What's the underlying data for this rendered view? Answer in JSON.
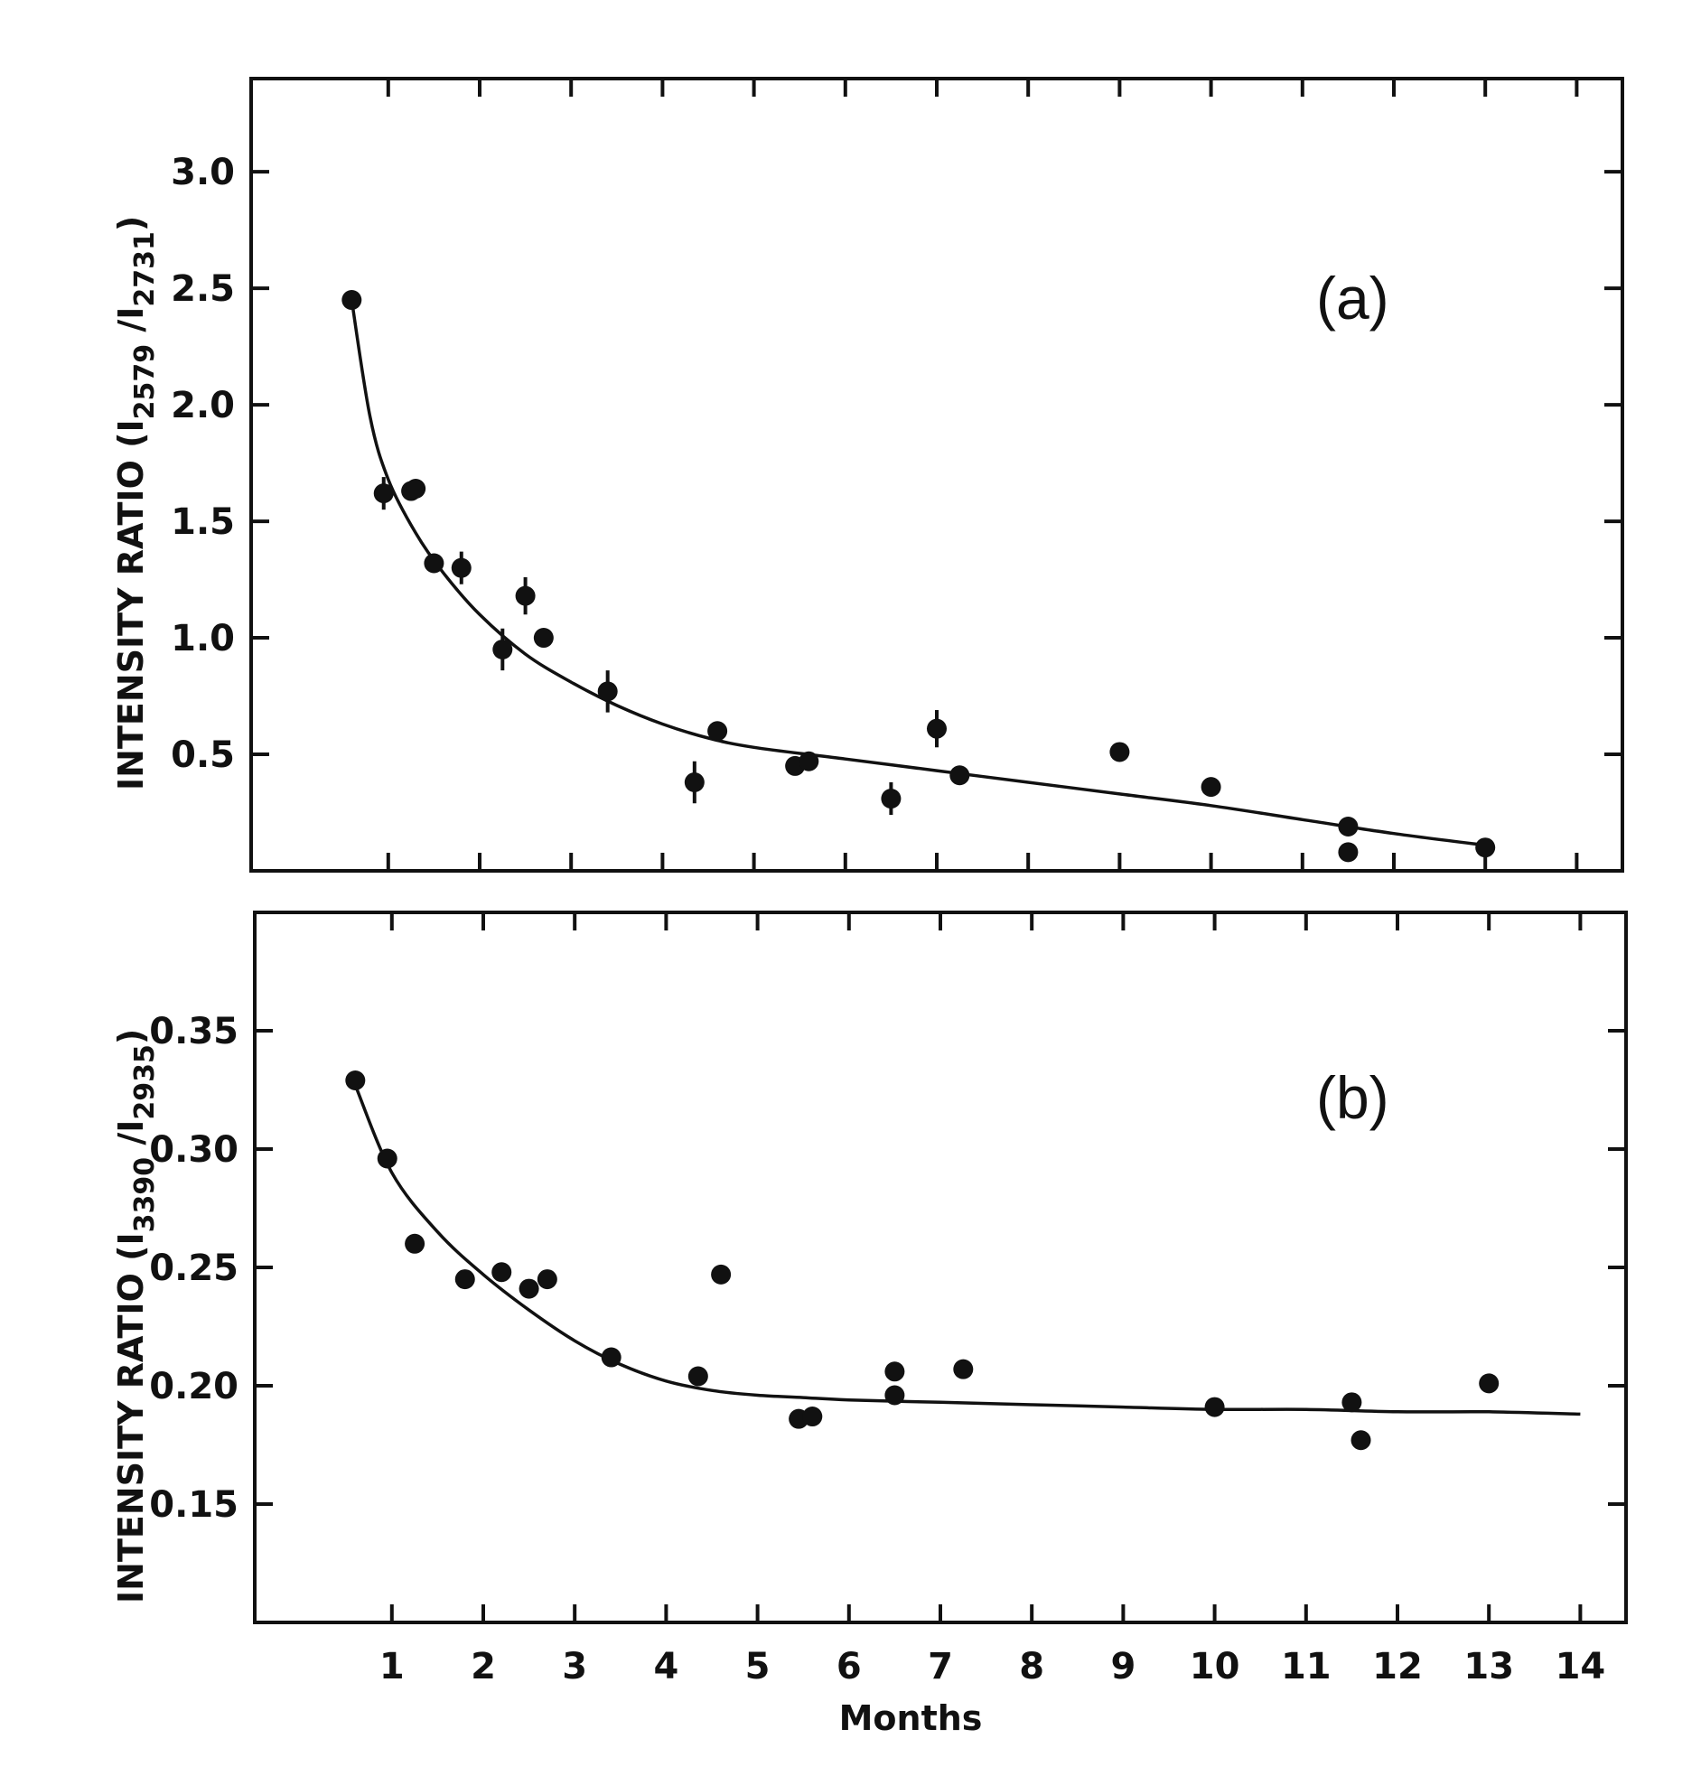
{
  "chart_data": [
    {
      "type": "scatter",
      "panel_label": "(a)",
      "ylabel_main": "INTENSITY RATIO (I",
      "ylabel_sub1": "2579",
      "ylabel_mid": " /I",
      "ylabel_sub2": "2731",
      "ylabel_end": ")",
      "xlim": [
        -0.5,
        14.5
      ],
      "ylim": [
        0,
        3.4
      ],
      "yticks": [
        0.5,
        1.0,
        1.5,
        2.0,
        2.5,
        3.0
      ],
      "ytick_labels": [
        "0.5",
        "1.0",
        "1.5",
        "2.0",
        "2.5",
        "3.0"
      ],
      "xticks": [
        1,
        2,
        3,
        4,
        5,
        6,
        7,
        8,
        9,
        10,
        11,
        12,
        13,
        14
      ],
      "points": [
        {
          "x": 0.6,
          "y": 2.45,
          "err": 0.03
        },
        {
          "x": 0.95,
          "y": 1.62,
          "err": 0.07
        },
        {
          "x": 1.25,
          "y": 1.63,
          "err": 0.03
        },
        {
          "x": 1.3,
          "y": 1.64,
          "err": 0.03
        },
        {
          "x": 1.5,
          "y": 1.32,
          "err": 0.03
        },
        {
          "x": 1.8,
          "y": 1.3,
          "err": 0.07
        },
        {
          "x": 2.25,
          "y": 0.95,
          "err": 0.09
        },
        {
          "x": 2.5,
          "y": 1.18,
          "err": 0.08
        },
        {
          "x": 2.7,
          "y": 1.0,
          "err": 0.03
        },
        {
          "x": 3.4,
          "y": 0.77,
          "err": 0.09
        },
        {
          "x": 4.35,
          "y": 0.38,
          "err": 0.09
        },
        {
          "x": 4.6,
          "y": 0.6,
          "err": 0.03
        },
        {
          "x": 5.45,
          "y": 0.45,
          "err": 0.03
        },
        {
          "x": 5.6,
          "y": 0.47,
          "err": 0.03
        },
        {
          "x": 6.5,
          "y": 0.31,
          "err": 0.07
        },
        {
          "x": 7.0,
          "y": 0.61,
          "err": 0.08
        },
        {
          "x": 7.25,
          "y": 0.41,
          "err": 0.03
        },
        {
          "x": 9.0,
          "y": 0.51,
          "err": 0.03
        },
        {
          "x": 10.0,
          "y": 0.36,
          "err": 0.03
        },
        {
          "x": 11.5,
          "y": 0.19,
          "err": 0.03
        },
        {
          "x": 11.5,
          "y": 0.08,
          "err": 0.03
        },
        {
          "x": 13.0,
          "y": 0.1,
          "err": 0.03
        }
      ],
      "fit_curve": {
        "x": [
          0.6,
          0.8,
          1.0,
          1.3,
          1.6,
          2.0,
          2.5,
          3.0,
          3.5,
          4.0,
          4.5,
          5.0,
          6.0,
          7.0,
          8.0,
          9.0,
          10.0,
          11.0,
          12.0,
          13.0
        ],
        "y": [
          2.45,
          1.95,
          1.68,
          1.45,
          1.28,
          1.1,
          0.93,
          0.81,
          0.71,
          0.63,
          0.57,
          0.53,
          0.48,
          0.43,
          0.38,
          0.33,
          0.28,
          0.22,
          0.16,
          0.11
        ]
      }
    },
    {
      "type": "scatter",
      "panel_label": "(b)",
      "ylabel_main": "INTENSITY RATIO (I",
      "ylabel_sub1": "3390",
      "ylabel_mid": " /I",
      "ylabel_sub2": "2935",
      "ylabel_end": ")",
      "xlabel": "Months",
      "xlim": [
        -0.5,
        14.5
      ],
      "ylim": [
        0.1,
        0.4
      ],
      "yticks": [
        0.15,
        0.2,
        0.25,
        0.3,
        0.35
      ],
      "ytick_labels": [
        "0.15",
        "0.20",
        "0.25",
        "0.30",
        "0.35"
      ],
      "xticks": [
        1,
        2,
        3,
        4,
        5,
        6,
        7,
        8,
        9,
        10,
        11,
        12,
        13,
        14
      ],
      "xtick_labels": [
        "1",
        "2",
        "3",
        "4",
        "5",
        "6",
        "7",
        "8",
        "9",
        "10",
        "11",
        "12",
        "13",
        "14"
      ],
      "points": [
        {
          "x": 0.6,
          "y": 0.329
        },
        {
          "x": 0.95,
          "y": 0.296
        },
        {
          "x": 1.25,
          "y": 0.26
        },
        {
          "x": 1.8,
          "y": 0.245
        },
        {
          "x": 2.2,
          "y": 0.248
        },
        {
          "x": 2.5,
          "y": 0.241
        },
        {
          "x": 2.7,
          "y": 0.245
        },
        {
          "x": 3.4,
          "y": 0.212
        },
        {
          "x": 4.35,
          "y": 0.204
        },
        {
          "x": 4.6,
          "y": 0.247
        },
        {
          "x": 5.45,
          "y": 0.186
        },
        {
          "x": 5.6,
          "y": 0.187
        },
        {
          "x": 6.5,
          "y": 0.206
        },
        {
          "x": 6.5,
          "y": 0.196
        },
        {
          "x": 7.25,
          "y": 0.207
        },
        {
          "x": 10.0,
          "y": 0.191
        },
        {
          "x": 11.5,
          "y": 0.193
        },
        {
          "x": 11.6,
          "y": 0.177
        },
        {
          "x": 13.0,
          "y": 0.201
        }
      ],
      "fit_curve": {
        "x": [
          0.6,
          1.0,
          1.5,
          2.0,
          2.5,
          3.0,
          3.5,
          4.0,
          4.5,
          5.0,
          5.5,
          6.0,
          7.0,
          8.0,
          9.0,
          10.0,
          11.0,
          12.0,
          13.0,
          14.0
        ],
        "y": [
          0.327,
          0.29,
          0.265,
          0.247,
          0.232,
          0.219,
          0.209,
          0.202,
          0.198,
          0.196,
          0.195,
          0.194,
          0.193,
          0.192,
          0.191,
          0.19,
          0.19,
          0.189,
          0.189,
          0.188
        ]
      }
    }
  ]
}
